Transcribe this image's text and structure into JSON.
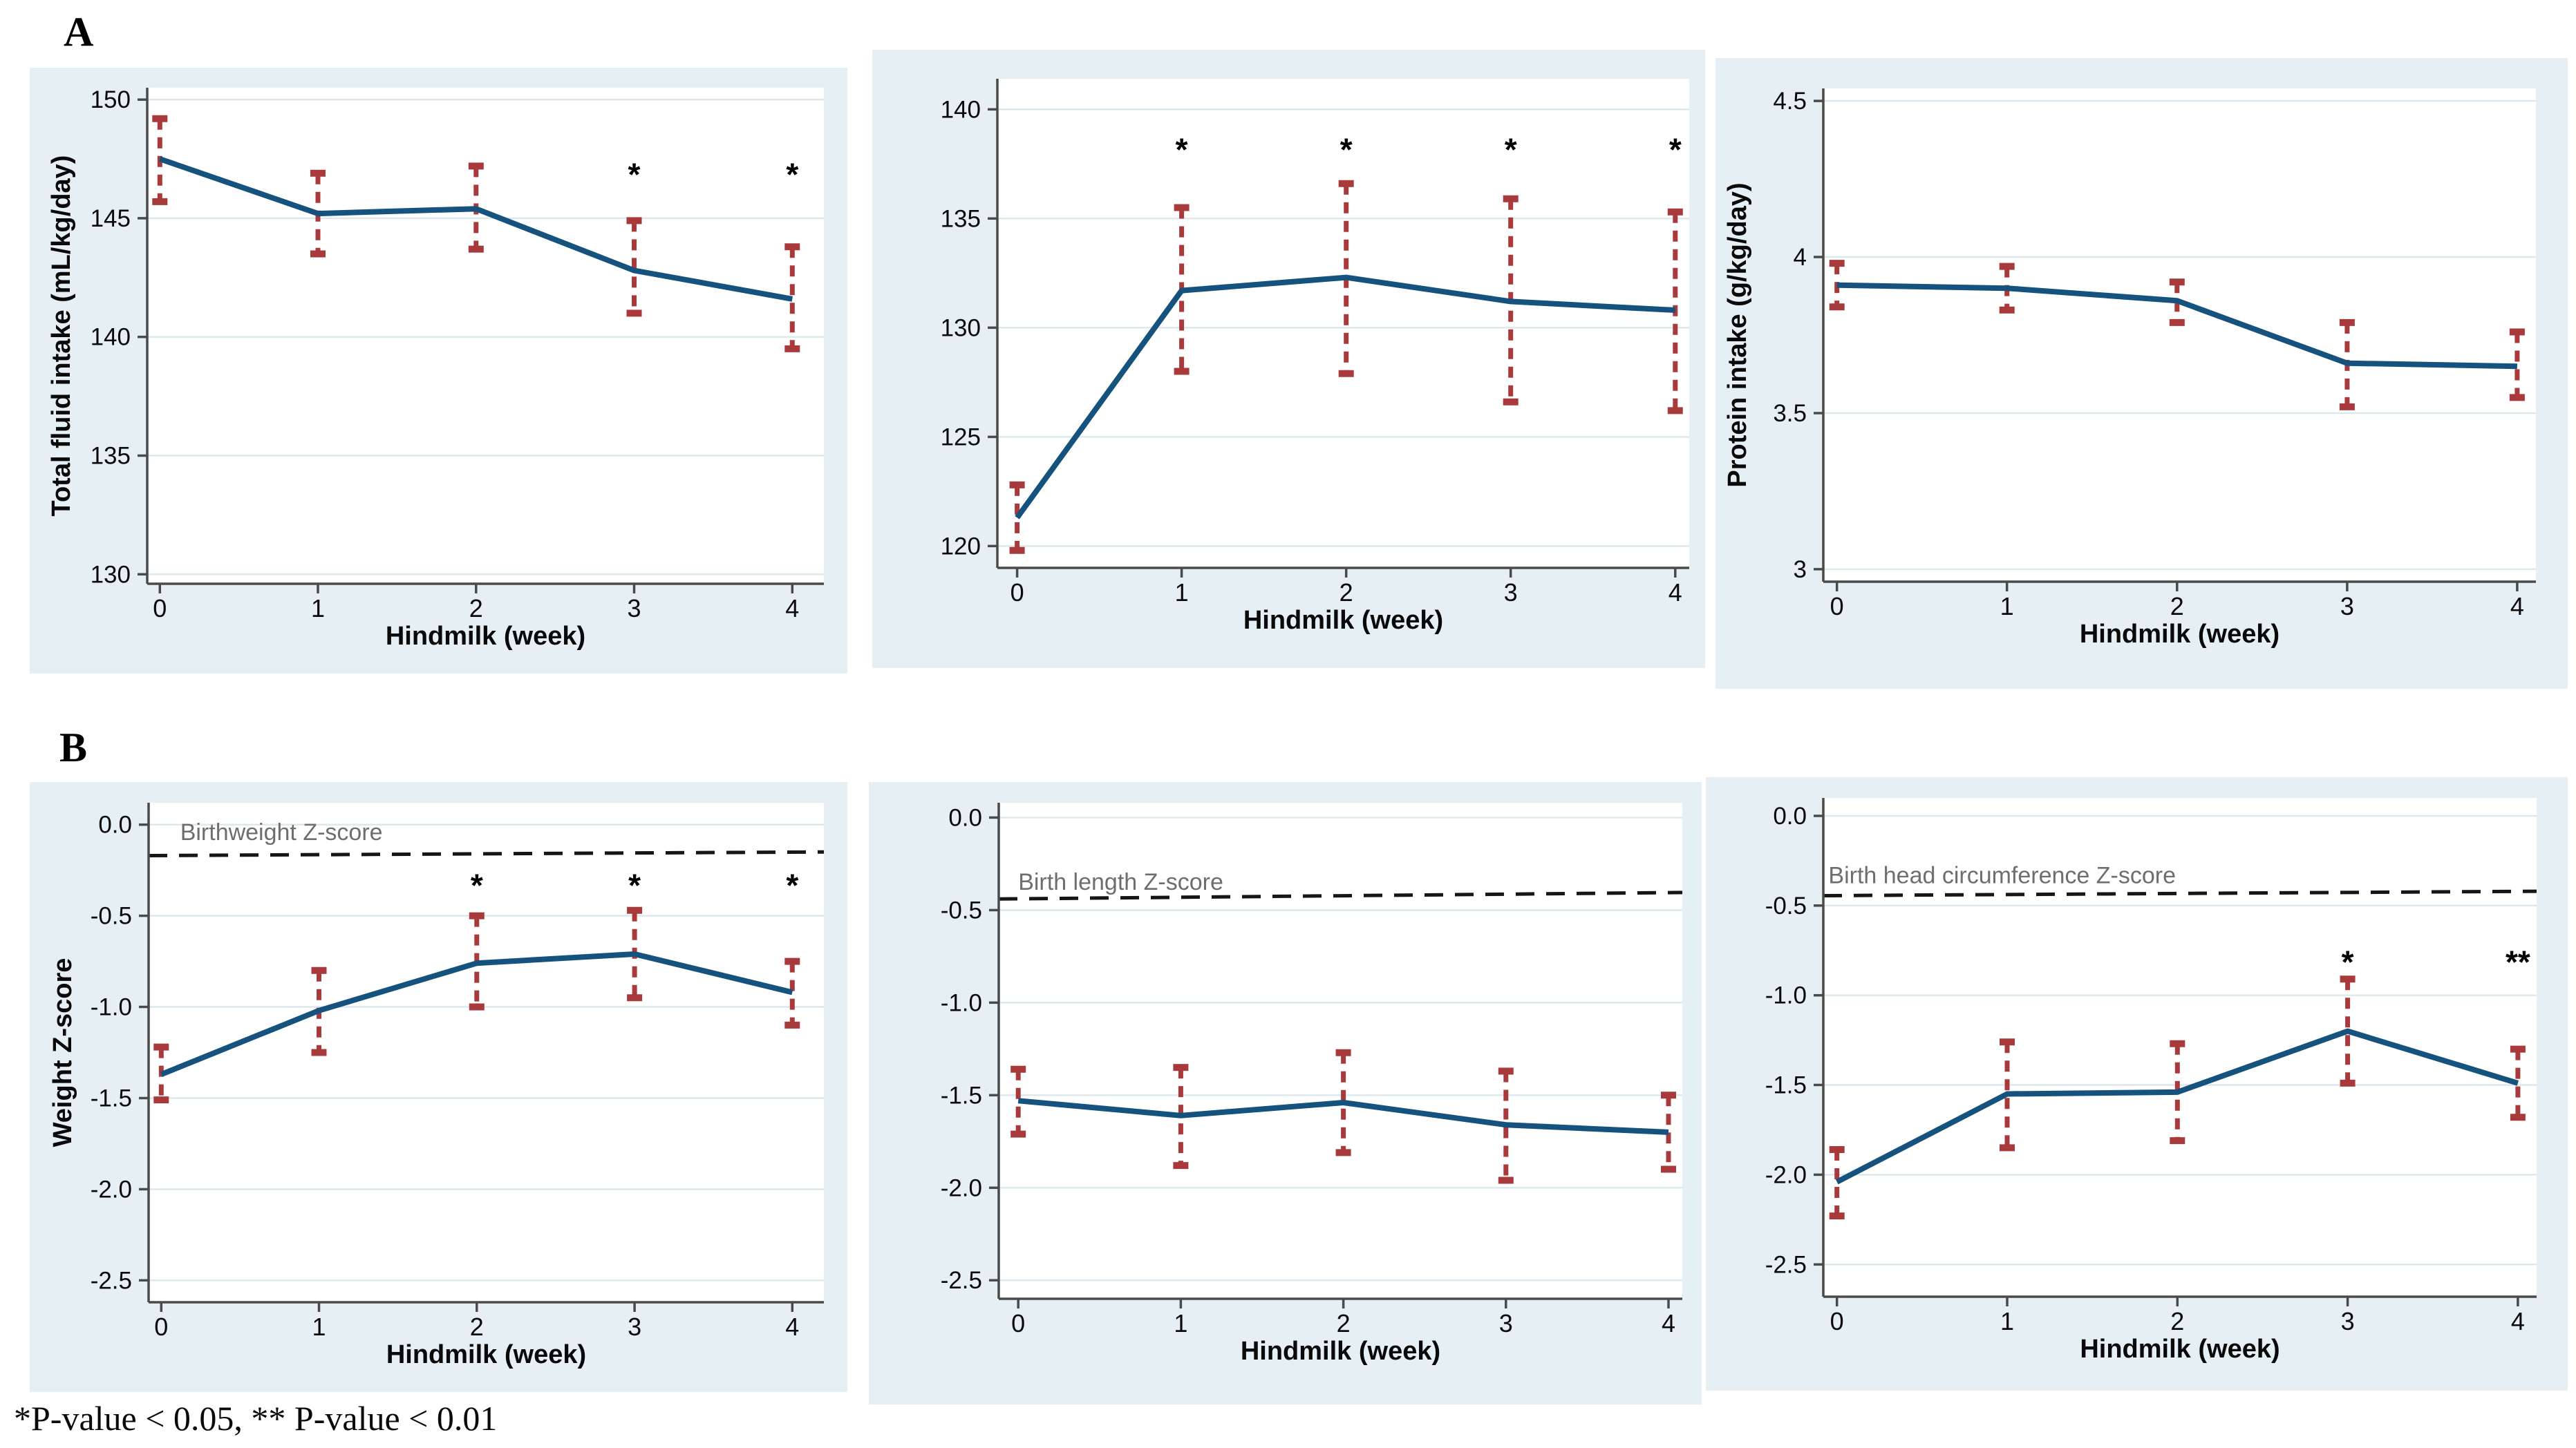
{
  "panel_a_label": "A",
  "panel_b_label": "B",
  "footnote": "*P-value < 0.05, ** P-value < 0.01",
  "style": {
    "panel_bg": "#e5eff4",
    "plot_bg": "#ffffff",
    "grid_color": "#dce8ee",
    "axis_color": "#4a4a4a",
    "text_color": "#0a0a0a",
    "line_color": "#15527d",
    "error_color": "#a93a3c",
    "ref_line_color": "#161616",
    "ref_label_color": "#6e6e6e",
    "sig_color": "#000000"
  },
  "chart_data": [
    {
      "id": "total-fluid-intake",
      "type": "line",
      "x": [
        0,
        1,
        2,
        3,
        4
      ],
      "xtick_labels": [
        "0",
        "1",
        "2",
        "3",
        "4"
      ],
      "xlabel": "Hindmilk (week)",
      "ylabel": "Total fluid intake (mL/kg/day)",
      "yticks": [
        130,
        135,
        140,
        145,
        150
      ],
      "ytick_labels": [
        "130",
        "135",
        "140",
        "145",
        "150"
      ],
      "ylim": [
        129.6,
        150.5
      ],
      "xlim": [
        -0.08,
        4.2
      ],
      "mean": [
        147.5,
        145.2,
        145.4,
        142.8,
        141.6
      ],
      "ci_low": [
        145.7,
        143.5,
        143.7,
        141.0,
        139.5
      ],
      "ci_high": [
        149.2,
        146.9,
        147.2,
        144.9,
        143.8
      ],
      "sig": [
        {
          "x": 3,
          "y": 147.25,
          "t": "*"
        },
        {
          "x": 4,
          "y": 147.25,
          "t": "*"
        }
      ],
      "ref": null,
      "grid": true
    },
    {
      "id": "panel-a-middle",
      "type": "line",
      "x": [
        0,
        1,
        2,
        3,
        4
      ],
      "xtick_labels": [
        "0",
        "1",
        "2",
        "3",
        "4"
      ],
      "xlabel": "Hindmilk (week)",
      "ylabel": "",
      "yticks": [
        120,
        125,
        130,
        135,
        140
      ],
      "ytick_labels": [
        "120",
        "125",
        "130",
        "135",
        "140"
      ],
      "ylim": [
        119.0,
        141.4
      ],
      "xlim": [
        -0.12,
        4.085
      ],
      "mean": [
        121.3,
        131.7,
        132.3,
        131.2,
        130.8
      ],
      "ci_low": [
        119.8,
        128.0,
        127.9,
        126.6,
        126.2
      ],
      "ci_high": [
        122.8,
        135.5,
        136.6,
        135.9,
        135.3
      ],
      "sig": [
        {
          "x": 1,
          "y": 138.6,
          "t": "*"
        },
        {
          "x": 2,
          "y": 138.6,
          "t": "*"
        },
        {
          "x": 3,
          "y": 138.6,
          "t": "*"
        },
        {
          "x": 4,
          "y": 138.6,
          "t": "*"
        }
      ],
      "ref": null,
      "grid": true
    },
    {
      "id": "protein-intake",
      "type": "line",
      "x": [
        0,
        1,
        2,
        3,
        4
      ],
      "xtick_labels": [
        "0",
        "1",
        "2",
        "3",
        "4"
      ],
      "xlabel": "Hindmilk (week)",
      "ylabel": "Protein intake (g/kg/day)",
      "yticks": [
        3,
        3.5,
        4,
        4.5
      ],
      "ytick_labels": [
        "3",
        "3.5",
        "4",
        "4.5"
      ],
      "ylim": [
        2.96,
        4.54
      ],
      "xlim": [
        -0.08,
        4.11
      ],
      "mean": [
        3.91,
        3.9,
        3.86,
        3.66,
        3.65
      ],
      "ci_low": [
        3.84,
        3.83,
        3.79,
        3.52,
        3.55
      ],
      "ci_high": [
        3.98,
        3.97,
        3.92,
        3.79,
        3.76
      ],
      "sig": [],
      "ref": null,
      "grid": true
    },
    {
      "id": "weight-z-score",
      "type": "line",
      "x": [
        0,
        1,
        2,
        3,
        4
      ],
      "xtick_labels": [
        "0",
        "1",
        "2",
        "3",
        "4"
      ],
      "xlabel": "Hindmilk (week)",
      "ylabel": "Weight Z-score",
      "yticks": [
        0.0,
        -0.5,
        -1.0,
        -1.5,
        -2.0,
        -2.5
      ],
      "ytick_labels": [
        "0.0",
        "-0.5",
        "-1.0",
        "-1.5",
        "-2.0",
        "-2.5"
      ],
      "ylim": [
        -2.62,
        0.12
      ],
      "xlim": [
        -0.08,
        4.2
      ],
      "mean": [
        -1.37,
        -1.02,
        -0.76,
        -0.71,
        -0.92
      ],
      "ci_low": [
        -1.51,
        -1.25,
        -1.0,
        -0.95,
        -1.1
      ],
      "ci_high": [
        -1.22,
        -0.8,
        -0.5,
        -0.47,
        -0.75
      ],
      "sig": [
        {
          "x": 2,
          "y": -0.28,
          "t": "*"
        },
        {
          "x": 3,
          "y": -0.28,
          "t": "*"
        },
        {
          "x": 4,
          "y": -0.28,
          "t": "*"
        }
      ],
      "ref": {
        "y0": -0.17,
        "y1": -0.15,
        "label": "Birthweight Z-score",
        "lx": 0.12,
        "ly": -0.085
      },
      "grid": true
    },
    {
      "id": "length-z-score",
      "type": "line",
      "x": [
        0,
        1,
        2,
        3,
        4
      ],
      "xtick_labels": [
        "0",
        "1",
        "2",
        "3",
        "4"
      ],
      "xlabel": "Hindmilk (week)",
      "ylabel": "",
      "yticks": [
        0.0,
        -0.5,
        -1.0,
        -1.5,
        -2.0,
        -2.5
      ],
      "ytick_labels": [
        "0.0",
        "-0.5",
        "-1.0",
        "-1.5",
        "-2.0",
        "-2.5"
      ],
      "ylim": [
        -2.6,
        0.08
      ],
      "xlim": [
        -0.12,
        4.085
      ],
      "mean": [
        -1.53,
        -1.61,
        -1.54,
        -1.66,
        -1.7
      ],
      "ci_low": [
        -1.71,
        -1.88,
        -1.81,
        -1.96,
        -1.9
      ],
      "ci_high": [
        -1.36,
        -1.35,
        -1.27,
        -1.37,
        -1.5
      ],
      "sig": [],
      "ref": {
        "y0": -0.44,
        "y1": -0.405,
        "label": "Birth length Z-score",
        "lx": 0.0,
        "ly": -0.39
      },
      "grid": true
    },
    {
      "id": "head-circumference-z-score",
      "type": "line",
      "x": [
        0,
        1,
        2,
        3,
        4
      ],
      "xtick_labels": [
        "0",
        "1",
        "2",
        "3",
        "4"
      ],
      "xlabel": "Hindmilk (week)",
      "ylabel": "",
      "yticks": [
        0.0,
        -0.5,
        -1.0,
        -1.5,
        -2.0,
        -2.5
      ],
      "ytick_labels": [
        "0.0",
        "-0.5",
        "-1.0",
        "-1.5",
        "-2.0",
        "-2.5"
      ],
      "ylim": [
        -2.68,
        0.1
      ],
      "xlim": [
        -0.08,
        4.11
      ],
      "mean": [
        -2.04,
        -1.55,
        -1.54,
        -1.2,
        -1.49
      ],
      "ci_low": [
        -2.23,
        -1.85,
        -1.81,
        -1.49,
        -1.68
      ],
      "ci_high": [
        -1.86,
        -1.26,
        -1.27,
        -0.91,
        -1.3
      ],
      "sig": [
        {
          "x": 3,
          "y": -0.76,
          "t": "*"
        },
        {
          "x": 4,
          "y": -0.76,
          "t": "**"
        }
      ],
      "ref": {
        "y0": -0.445,
        "y1": -0.42,
        "label": "Birth head circumference Z-score",
        "lx": -0.05,
        "ly": -0.375
      },
      "grid": true
    }
  ]
}
